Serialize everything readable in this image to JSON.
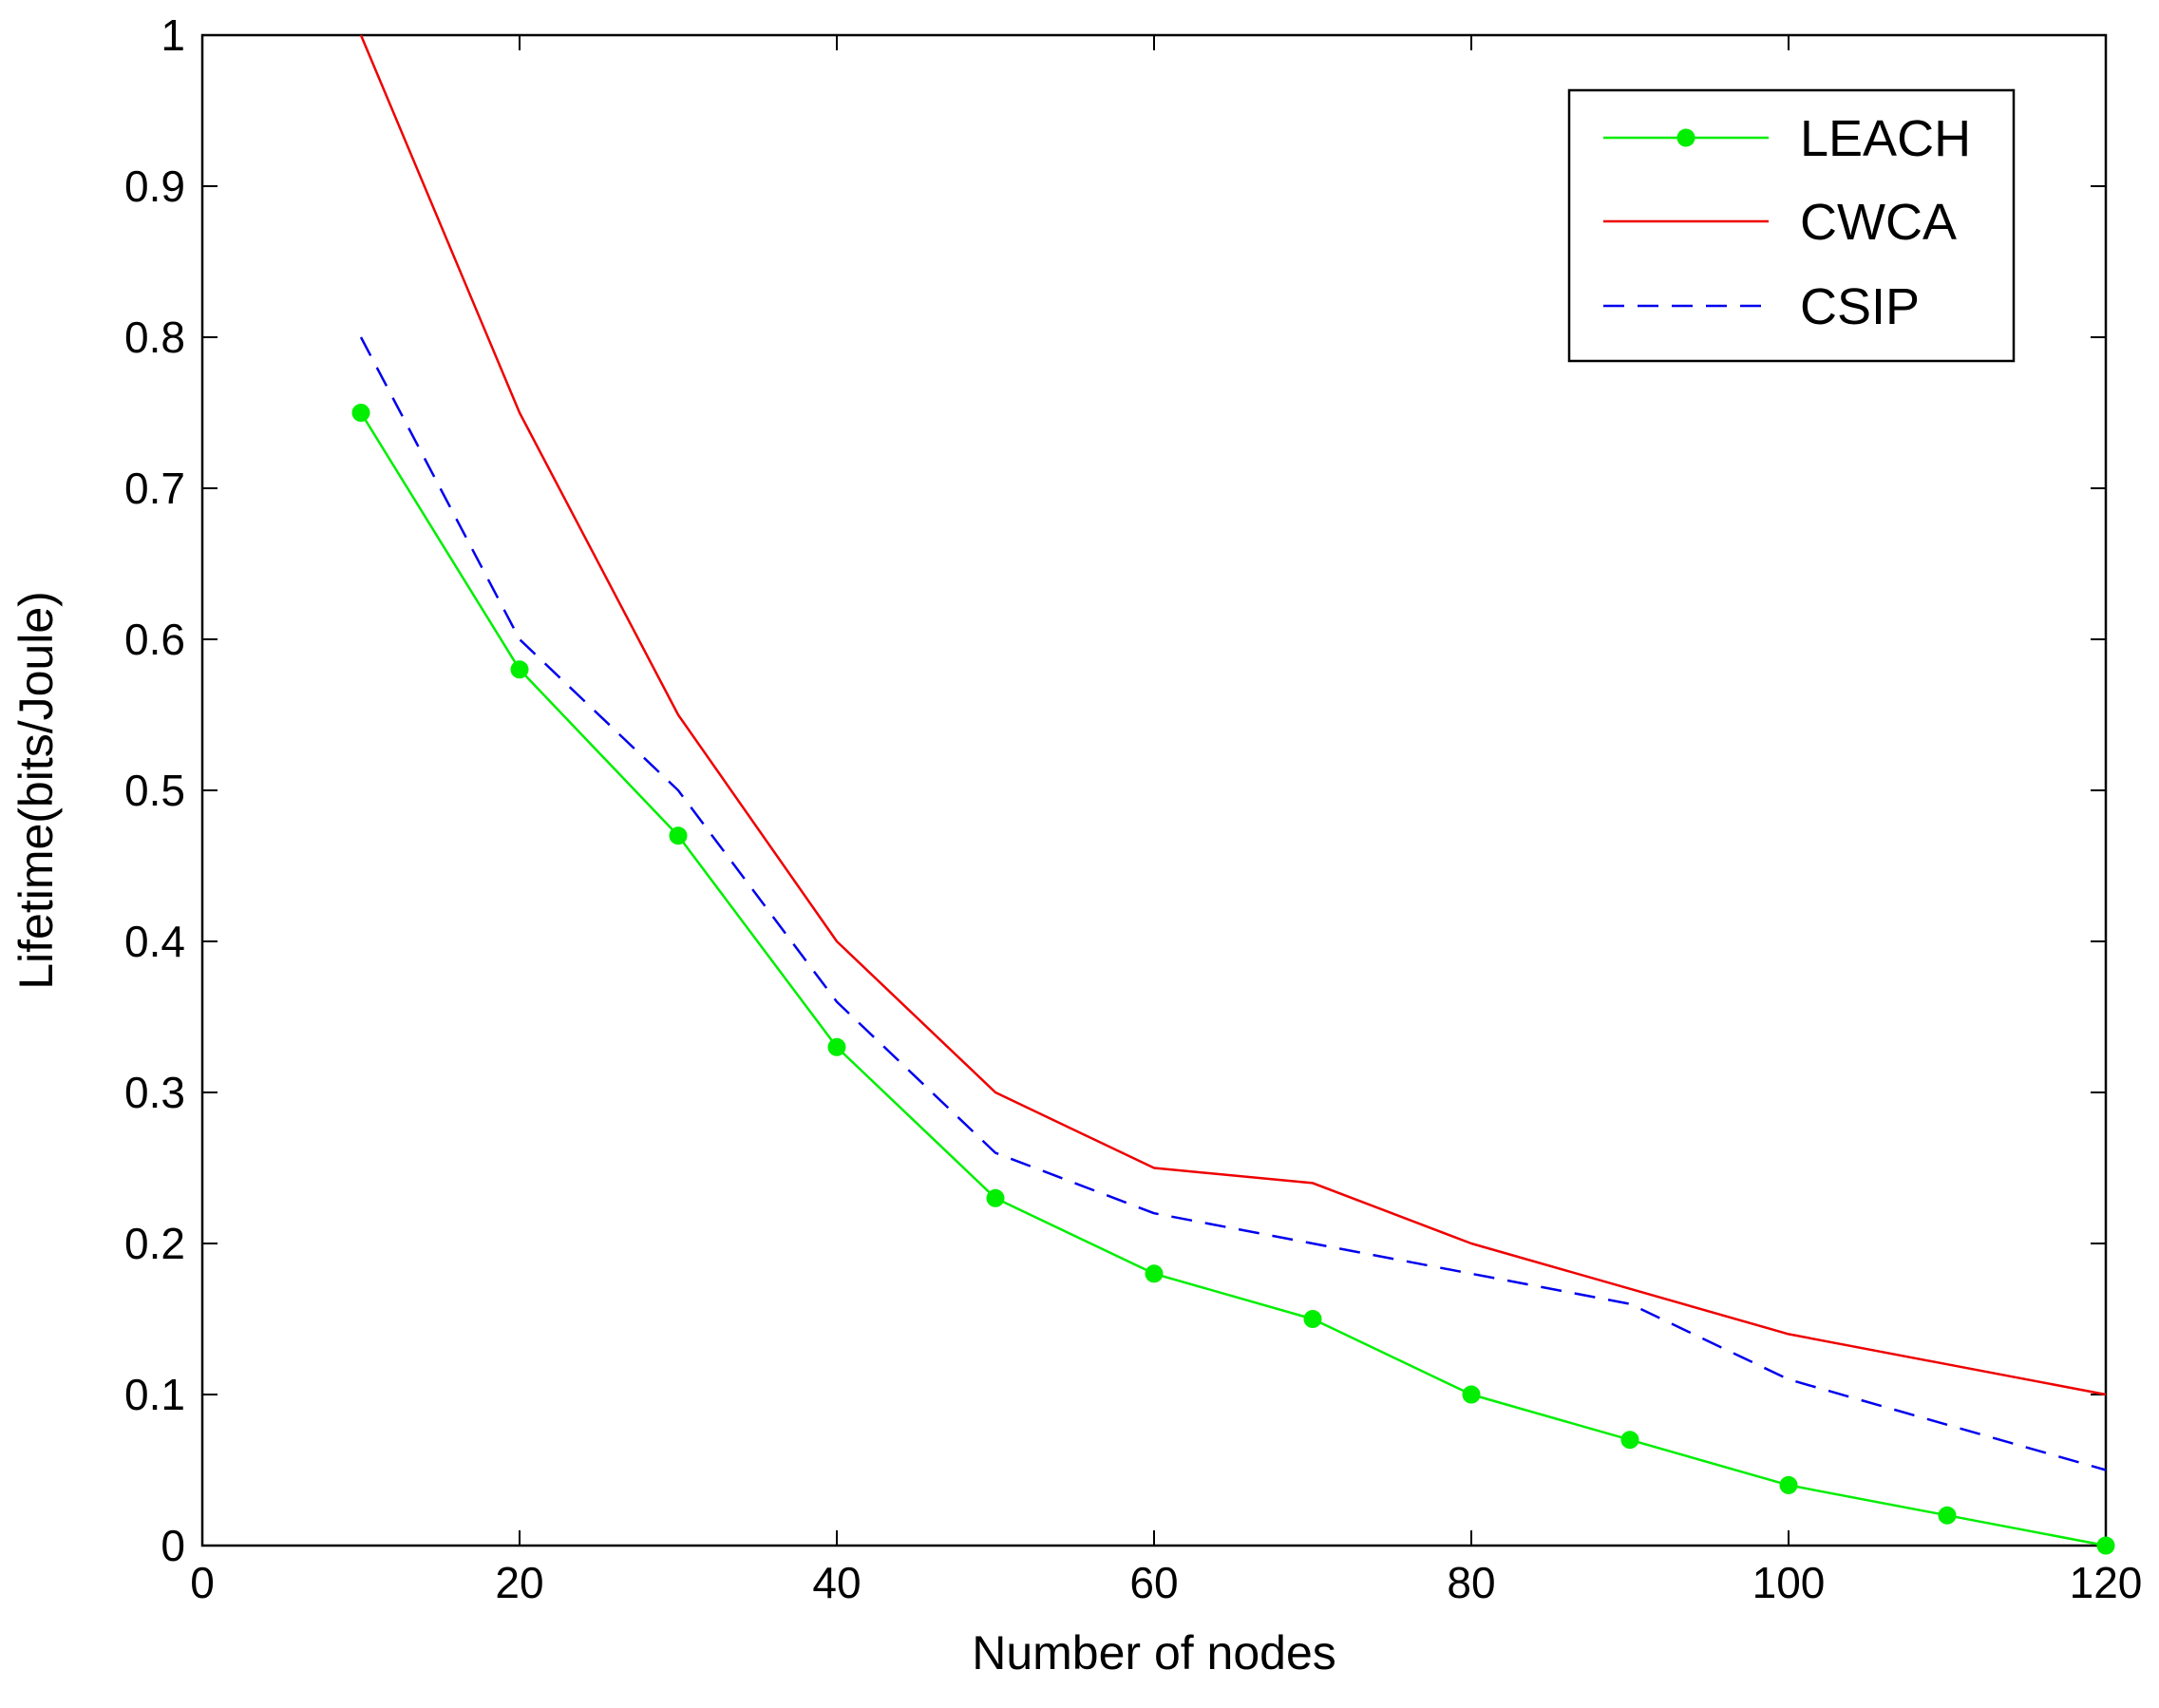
{
  "chart_data": {
    "type": "line",
    "title": "",
    "xlabel": "Number of nodes",
    "ylabel": "Lifetime(bits/Joule)",
    "xlim": [
      0,
      120
    ],
    "ylim": [
      0,
      1
    ],
    "xticks": [
      0,
      20,
      40,
      60,
      80,
      100,
      120
    ],
    "yticks": [
      0,
      0.1,
      0.2,
      0.3,
      0.4,
      0.5,
      0.6,
      0.7,
      0.8,
      0.9,
      1
    ],
    "x": [
      10,
      20,
      30,
      40,
      50,
      60,
      70,
      80,
      90,
      100,
      110,
      120
    ],
    "grid": false,
    "legend_position": "top-right",
    "series": [
      {
        "name": "LEACH",
        "color": "#00ee00",
        "style": "solid",
        "marker": "circle",
        "values": [
          0.75,
          0.58,
          0.47,
          0.33,
          0.23,
          0.18,
          0.15,
          0.1,
          0.07,
          0.04,
          0.02,
          0.0
        ]
      },
      {
        "name": "CWCA",
        "color": "#ee0000",
        "style": "solid",
        "marker": "none",
        "values": [
          1.0,
          0.75,
          0.55,
          0.4,
          0.3,
          0.25,
          0.24,
          0.2,
          0.17,
          0.14,
          0.12,
          0.1
        ]
      },
      {
        "name": "CSIP",
        "color": "#0000ee",
        "style": "dashed",
        "marker": "none",
        "values": [
          0.8,
          0.6,
          0.5,
          0.36,
          0.26,
          0.22,
          0.2,
          0.18,
          0.16,
          0.11,
          0.08,
          0.05
        ]
      }
    ]
  }
}
